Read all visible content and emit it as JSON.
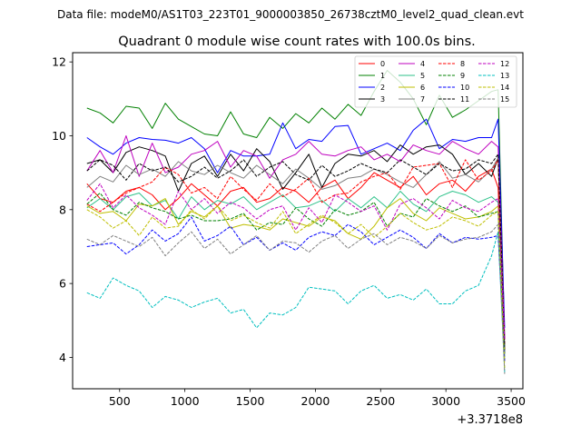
{
  "chart_data": {
    "type": "line",
    "suptitle": "Data file: modeM0/AS1T03_223T01_9000003850_26738cztM0_level2_quad_clean.evt",
    "title": "Quadrant 0 module wise count rates with 100.0s bins.",
    "xlabel": "",
    "ylabel": "",
    "x_offset_label": "+3.3718e8",
    "xlim": [
      140,
      3590
    ],
    "ylim": [
      3.15,
      12.25
    ],
    "xticks": [
      500,
      1000,
      1500,
      2000,
      2500,
      3000,
      3500
    ],
    "yticks": [
      4,
      6,
      8,
      10,
      12
    ],
    "grid": false,
    "legend": {
      "position": "top-right",
      "columns": 4
    },
    "x": [
      250,
      350,
      450,
      550,
      650,
      750,
      850,
      950,
      1050,
      1150,
      1250,
      1350,
      1450,
      1550,
      1650,
      1750,
      1850,
      1950,
      2050,
      2150,
      2250,
      2350,
      2450,
      2550,
      2650,
      2750,
      2850,
      2950,
      3050,
      3150,
      3250,
      3350,
      3400,
      3450
    ],
    "series": [
      {
        "name": "0",
        "color": "#ff0000",
        "dash": "solid",
        "values": [
          8.7,
          8.3,
          8.2,
          8.5,
          8.6,
          8.4,
          8.0,
          8.3,
          8.7,
          8.4,
          8.1,
          8.5,
          8.6,
          8.2,
          8.3,
          8.6,
          8.5,
          8.2,
          8.6,
          8.8,
          8.3,
          8.6,
          9.0,
          8.8,
          8.6,
          8.9,
          8.4,
          8.7,
          8.8,
          8.5,
          8.9,
          9.1,
          8.6,
          4.2
        ]
      },
      {
        "name": "1",
        "color": "#008000",
        "dash": "solid",
        "values": [
          10.75,
          10.62,
          10.35,
          10.8,
          10.75,
          10.2,
          10.88,
          10.45,
          10.25,
          10.05,
          10.0,
          10.65,
          10.05,
          9.95,
          10.5,
          10.2,
          10.6,
          10.35,
          10.75,
          10.45,
          10.85,
          10.55,
          11.2,
          11.77,
          11.45,
          11.0,
          10.3,
          11.1,
          10.5,
          10.7,
          10.95,
          11.2,
          11.25,
          4.5
        ]
      },
      {
        "name": "2",
        "color": "#0000ff",
        "dash": "solid",
        "values": [
          9.95,
          9.7,
          9.5,
          9.8,
          9.95,
          9.9,
          9.88,
          9.8,
          9.95,
          9.65,
          9.0,
          9.6,
          9.45,
          9.45,
          9.5,
          10.35,
          9.65,
          9.9,
          9.85,
          10.25,
          10.28,
          9.5,
          9.65,
          9.8,
          9.6,
          10.15,
          10.45,
          9.65,
          9.9,
          9.85,
          9.95,
          9.95,
          10.45,
          4.8
        ]
      },
      {
        "name": "3",
        "color": "#000000",
        "dash": "solid",
        "values": [
          9.25,
          9.35,
          9.0,
          9.55,
          9.7,
          9.6,
          9.45,
          8.5,
          9.25,
          9.45,
          8.9,
          9.5,
          9.05,
          9.65,
          9.3,
          8.55,
          9.0,
          9.5,
          8.6,
          9.25,
          9.5,
          9.45,
          9.6,
          9.3,
          9.75,
          9.5,
          9.7,
          9.75,
          9.5,
          8.95,
          9.25,
          8.9,
          9.4,
          4.1
        ]
      },
      {
        "name": "4",
        "color": "#bf00bf",
        "dash": "solid",
        "values": [
          9.05,
          9.6,
          9.0,
          10.0,
          8.9,
          9.8,
          9.0,
          9.15,
          9.5,
          9.6,
          9.85,
          9.15,
          9.6,
          9.45,
          8.85,
          9.35,
          9.5,
          9.85,
          9.5,
          9.45,
          9.6,
          9.7,
          9.35,
          9.5,
          9.3,
          9.75,
          9.6,
          9.5,
          9.85,
          9.65,
          9.5,
          9.85,
          9.7,
          4.5
        ]
      },
      {
        "name": "5",
        "color": "#2ec28a",
        "dash": "solid",
        "values": [
          8.05,
          8.3,
          8.0,
          8.35,
          8.45,
          8.1,
          8.25,
          7.75,
          8.35,
          8.0,
          8.25,
          8.15,
          8.35,
          8.0,
          8.2,
          8.4,
          8.05,
          8.1,
          8.25,
          7.95,
          8.3,
          8.05,
          8.35,
          8.05,
          8.5,
          8.15,
          7.95,
          8.35,
          8.5,
          8.4,
          8.2,
          8.35,
          8.2,
          4.0
        ]
      },
      {
        "name": "6",
        "color": "#bfbf00",
        "dash": "solid",
        "values": [
          8.1,
          7.9,
          7.95,
          7.7,
          8.15,
          8.1,
          8.3,
          7.6,
          7.95,
          7.8,
          8.1,
          7.5,
          7.6,
          7.55,
          7.45,
          7.75,
          7.65,
          7.55,
          7.8,
          7.7,
          7.35,
          7.2,
          7.55,
          8.05,
          8.3,
          7.9,
          7.7,
          8.05,
          7.9,
          7.75,
          7.8,
          7.95,
          8.1,
          3.9
        ]
      },
      {
        "name": "7",
        "color": "#808080",
        "dash": "solid",
        "values": [
          8.6,
          8.9,
          8.75,
          9.2,
          8.95,
          9.1,
          8.9,
          9.3,
          9.05,
          8.95,
          9.2,
          9.0,
          8.85,
          9.2,
          8.95,
          8.7,
          9.1,
          8.85,
          8.55,
          8.65,
          8.85,
          8.9,
          9.1,
          8.95,
          8.75,
          8.6,
          8.95,
          9.3,
          8.85,
          8.95,
          8.75,
          9.1,
          9.4,
          4.3
        ]
      },
      {
        "name": "8",
        "color": "#ff0000",
        "dash": "dashed",
        "values": [
          8.15,
          7.95,
          8.2,
          8.45,
          8.6,
          8.75,
          9.15,
          8.95,
          8.45,
          8.6,
          8.3,
          8.9,
          8.55,
          8.25,
          8.7,
          8.35,
          8.55,
          8.85,
          8.2,
          8.4,
          8.45,
          8.75,
          8.9,
          9.0,
          8.55,
          9.15,
          9.2,
          9.25,
          8.6,
          9.35,
          8.8,
          9.05,
          9.35,
          4.4
        ]
      },
      {
        "name": "9",
        "color": "#008000",
        "dash": "dashed",
        "values": [
          8.15,
          8.45,
          8.0,
          7.85,
          8.2,
          8.05,
          7.95,
          7.75,
          7.85,
          7.7,
          7.7,
          7.75,
          7.9,
          7.45,
          7.65,
          7.6,
          8.05,
          7.75,
          7.55,
          8.0,
          7.85,
          7.95,
          8.2,
          7.55,
          7.9,
          7.8,
          8.3,
          8.1,
          7.95,
          8.1,
          7.8,
          7.9,
          7.95,
          4.2
        ]
      },
      {
        "name": "10",
        "color": "#0000ff",
        "dash": "dashed",
        "values": [
          7.0,
          7.05,
          7.1,
          6.8,
          7.05,
          7.45,
          7.15,
          7.35,
          7.8,
          7.15,
          7.3,
          7.55,
          7.05,
          7.25,
          6.9,
          7.1,
          6.9,
          7.25,
          7.4,
          7.3,
          7.6,
          7.4,
          7.05,
          7.25,
          7.45,
          7.25,
          6.95,
          7.35,
          7.1,
          7.25,
          7.2,
          7.25,
          7.3,
          3.9
        ]
      },
      {
        "name": "11",
        "color": "#000000",
        "dash": "dashed",
        "values": [
          9.05,
          9.35,
          9.2,
          8.8,
          9.25,
          9.05,
          9.15,
          8.75,
          8.9,
          9.15,
          8.85,
          9.05,
          9.35,
          8.9,
          9.15,
          9.3,
          8.95,
          8.8,
          9.2,
          8.9,
          9.05,
          9.25,
          9.1,
          9.0,
          9.35,
          9.15,
          8.95,
          9.25,
          9.05,
          9.1,
          9.35,
          9.25,
          9.5,
          4.3
        ]
      },
      {
        "name": "12",
        "color": "#bf00bf",
        "dash": "dashed",
        "values": [
          8.25,
          8.7,
          8.05,
          8.4,
          8.05,
          7.85,
          7.6,
          8.5,
          8.0,
          8.3,
          7.9,
          8.2,
          8.05,
          7.75,
          8.0,
          8.1,
          7.45,
          8.05,
          7.65,
          8.4,
          8.2,
          7.95,
          8.1,
          7.45,
          8.15,
          8.3,
          8.05,
          7.75,
          8.25,
          8.05,
          7.95,
          8.2,
          8.3,
          4.5
        ]
      },
      {
        "name": "13",
        "color": "#00bfbf",
        "dash": "dashed",
        "values": [
          5.75,
          5.6,
          6.15,
          5.95,
          5.8,
          5.35,
          5.65,
          5.55,
          5.35,
          5.5,
          5.6,
          5.2,
          5.3,
          4.8,
          5.2,
          5.15,
          5.35,
          5.9,
          5.85,
          5.8,
          5.45,
          5.8,
          5.95,
          5.6,
          5.7,
          5.55,
          5.85,
          5.45,
          5.45,
          5.8,
          5.95,
          6.75,
          7.4,
          3.6
        ]
      },
      {
        "name": "14",
        "color": "#bfbf00",
        "dash": "dashed",
        "values": [
          8.0,
          7.8,
          7.5,
          7.7,
          7.3,
          7.8,
          7.5,
          7.55,
          8.0,
          7.75,
          8.1,
          7.7,
          7.85,
          7.65,
          7.5,
          7.95,
          7.35,
          7.6,
          7.85,
          7.65,
          7.35,
          7.6,
          7.25,
          7.55,
          7.9,
          7.65,
          7.45,
          7.55,
          7.8,
          7.7,
          7.55,
          7.85,
          7.95,
          3.7
        ]
      },
      {
        "name": "15",
        "color": "#808080",
        "dash": "dashed",
        "values": [
          7.2,
          7.05,
          7.3,
          7.15,
          7.0,
          7.25,
          6.75,
          7.1,
          7.4,
          6.95,
          7.2,
          6.8,
          7.05,
          7.3,
          6.9,
          7.15,
          7.1,
          6.85,
          7.15,
          7.3,
          6.95,
          7.2,
          7.35,
          7.05,
          7.25,
          7.15,
          6.95,
          7.3,
          7.1,
          7.2,
          7.25,
          7.4,
          7.6,
          3.55
        ]
      }
    ]
  }
}
